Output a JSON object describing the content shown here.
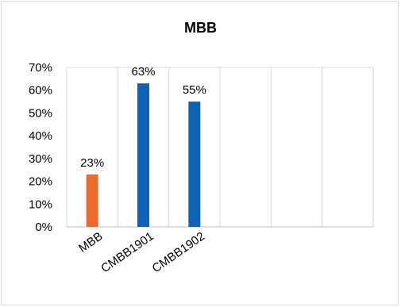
{
  "chart_data": {
    "type": "bar",
    "title": "MBB",
    "xlabel": "",
    "ylabel": "",
    "categories": [
      "MBB",
      "CMBB1901",
      "CMBB1902",
      "",
      "",
      ""
    ],
    "values": [
      0.23,
      0.63,
      0.55,
      null,
      null,
      null
    ],
    "data_labels": [
      "23%",
      "63%",
      "55%",
      "",
      "",
      ""
    ],
    "bar_colors": [
      "#ed6a2f",
      "#0f63b5",
      "#0f63b5"
    ],
    "ylim": [
      0,
      0.7
    ],
    "yticks": [
      0,
      0.1,
      0.2,
      0.3,
      0.4,
      0.5,
      0.6,
      0.7
    ],
    "ytick_labels": [
      "0%",
      "10%",
      "20%",
      "30%",
      "40%",
      "50%",
      "60%",
      "70%"
    ],
    "grid": "vertical",
    "legend": "none"
  }
}
